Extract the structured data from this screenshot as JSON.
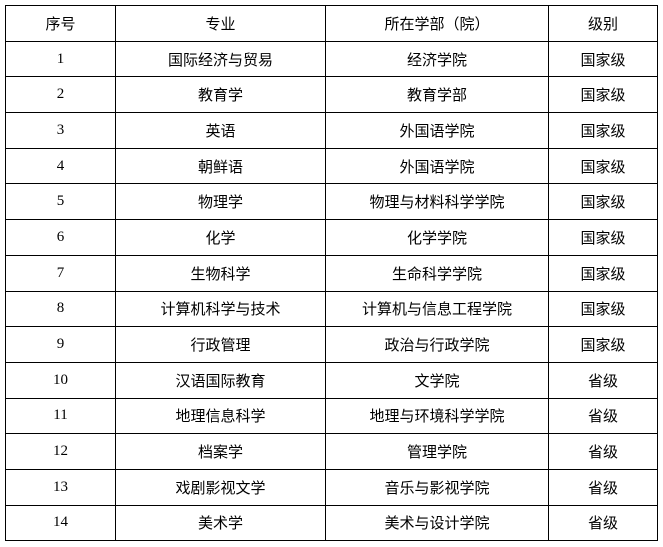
{
  "headers": [
    "序号",
    "专业",
    "所在学部（院）",
    "级别"
  ],
  "rows": [
    [
      "1",
      "国际经济与贸易",
      "经济学院",
      "国家级"
    ],
    [
      "2",
      "教育学",
      "教育学部",
      "国家级"
    ],
    [
      "3",
      "英语",
      "外国语学院",
      "国家级"
    ],
    [
      "4",
      "朝鲜语",
      "外国语学院",
      "国家级"
    ],
    [
      "5",
      "物理学",
      "物理与材料科学学院",
      "国家级"
    ],
    [
      "6",
      "化学",
      "化学学院",
      "国家级"
    ],
    [
      "7",
      "生物科学",
      "生命科学学院",
      "国家级"
    ],
    [
      "8",
      "计算机科学与技术",
      "计算机与信息工程学院",
      "国家级"
    ],
    [
      "9",
      "行政管理",
      "政治与行政学院",
      "国家级"
    ],
    [
      "10",
      "汉语国际教育",
      "文学院",
      "省级"
    ],
    [
      "11",
      "地理信息科学",
      "地理与环境科学学院",
      "省级"
    ],
    [
      "12",
      "档案学",
      "管理学院",
      "省级"
    ],
    [
      "13",
      "戏剧影视文学",
      "音乐与影视学院",
      "省级"
    ],
    [
      "14",
      "美术学",
      "美术与设计学院",
      "省级"
    ]
  ]
}
